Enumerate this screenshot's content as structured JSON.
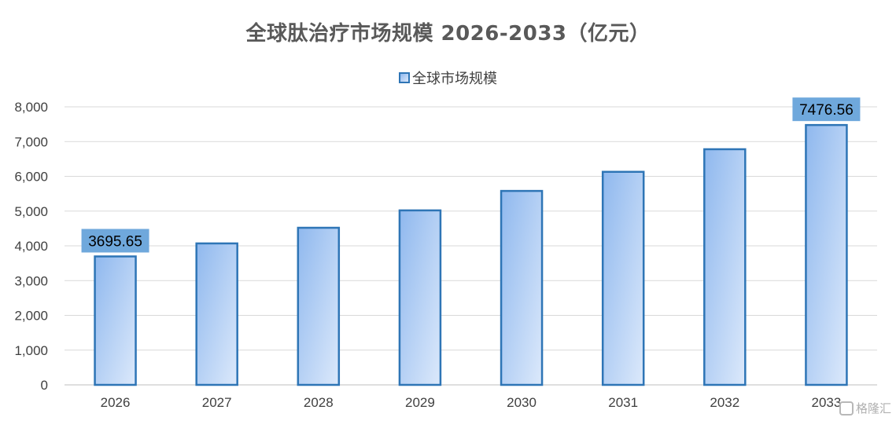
{
  "chart_data": {
    "type": "bar",
    "title": "全球肽治疗市场规模 2026-2033（亿元）",
    "legend": {
      "position": "top",
      "entries": [
        "全球市场规模"
      ]
    },
    "categories": [
      "2026",
      "2027",
      "2028",
      "2029",
      "2030",
      "2031",
      "2032",
      "2033"
    ],
    "series": [
      {
        "name": "全球市场规模",
        "values": [
          3695.65,
          4070,
          4520,
          5020,
          5580,
          6130,
          6780,
          7476.56
        ]
      }
    ],
    "data_labels": [
      {
        "category": "2026",
        "text": "3695.65"
      },
      {
        "category": "2033",
        "text": "7476.56"
      }
    ],
    "ylim": [
      0,
      8000
    ],
    "yticks": [
      0,
      1000,
      2000,
      3000,
      4000,
      5000,
      6000,
      7000,
      8000
    ],
    "ytick_labels": [
      "0",
      "1,000",
      "2,000",
      "3,000",
      "4,000",
      "5,000",
      "6,000",
      "7,000",
      "8,000"
    ],
    "grid": true,
    "colors": {
      "bar_fill_start": "#8fb8ee",
      "bar_fill_end": "#dce9fb",
      "bar_border": "#2e75b6",
      "label_box": "#6fa8dc",
      "grid": "#d9d9d9",
      "axis": "#bfbfbf"
    }
  },
  "watermark": {
    "icon": "gelonghui-logo-icon",
    "text": "格隆汇"
  }
}
